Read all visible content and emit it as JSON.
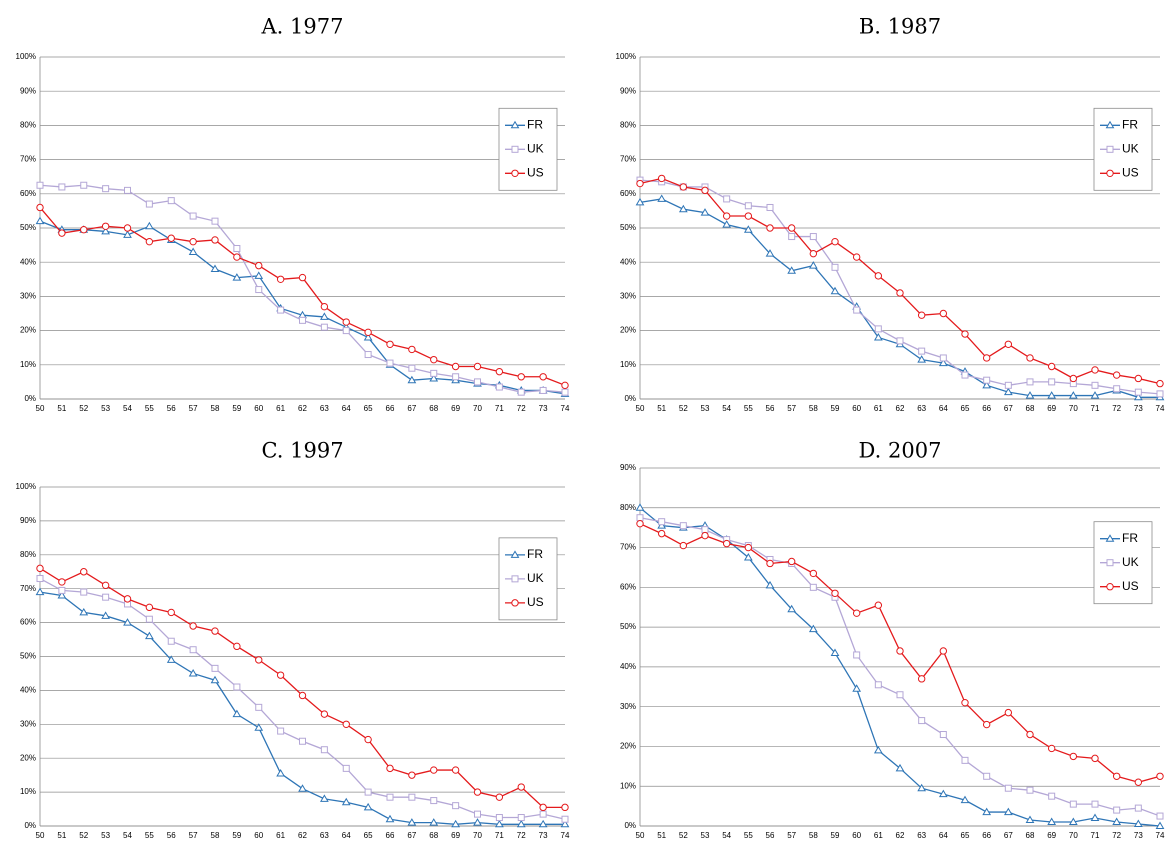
{
  "chart_data": [
    {
      "type": "line",
      "title": "A. 1977",
      "categories": [
        "50",
        "51",
        "52",
        "53",
        "54",
        "55",
        "56",
        "57",
        "58",
        "59",
        "60",
        "61",
        "62",
        "63",
        "64",
        "65",
        "66",
        "67",
        "68",
        "69",
        "70",
        "71",
        "72",
        "73",
        "74"
      ],
      "ylim": [
        0,
        100
      ],
      "yticks": [
        {
          "value": 0,
          "label": "0%"
        },
        {
          "value": 10,
          "label": "10%"
        },
        {
          "value": 20,
          "label": "20%"
        },
        {
          "value": 30,
          "label": "30%"
        },
        {
          "value": 40,
          "label": "40%"
        },
        {
          "value": 50,
          "label": "50%"
        },
        {
          "value": 60,
          "label": "60%"
        },
        {
          "value": 70,
          "label": "70%"
        },
        {
          "value": 80,
          "label": "80%"
        },
        {
          "value": 90,
          "label": "90%"
        },
        {
          "value": 100,
          "label": "100%"
        }
      ],
      "grid": true,
      "legend": "right",
      "series": [
        {
          "name": "FR",
          "color": "#2e75b6",
          "marker": "triangle",
          "values": [
            52,
            49.5,
            49.5,
            49,
            48,
            50.5,
            46.5,
            43,
            38,
            35.5,
            36,
            26.5,
            24.5,
            24,
            21,
            18,
            10,
            5.5,
            6,
            5.5,
            4.5,
            4,
            2.5,
            2.5,
            1.5
          ]
        },
        {
          "name": "UK",
          "color": "#b4a7d6",
          "marker": "square",
          "values": [
            62.5,
            62,
            62.5,
            61.5,
            61,
            57,
            58,
            53.5,
            52,
            44,
            32,
            26,
            23,
            21,
            20,
            13,
            10.5,
            9,
            7.5,
            6.5,
            5,
            3.5,
            2,
            2.5,
            2
          ]
        },
        {
          "name": "US",
          "color": "#e41a1c",
          "marker": "circle",
          "values": [
            56,
            48.5,
            49.5,
            50.5,
            50,
            46,
            47,
            46,
            46.5,
            41.5,
            39,
            35,
            35.5,
            27,
            22.5,
            19.5,
            16,
            14.5,
            11.5,
            9.5,
            9.5,
            8,
            6.5,
            6.5,
            4
          ]
        }
      ]
    },
    {
      "type": "line",
      "title": "B. 1987",
      "categories": [
        "50",
        "51",
        "52",
        "53",
        "54",
        "55",
        "56",
        "57",
        "58",
        "59",
        "60",
        "61",
        "62",
        "63",
        "64",
        "65",
        "66",
        "67",
        "68",
        "69",
        "70",
        "71",
        "72",
        "73",
        "74"
      ],
      "ylim": [
        0,
        100
      ],
      "yticks": [
        {
          "value": 0,
          "label": "0%"
        },
        {
          "value": 10,
          "label": "10%"
        },
        {
          "value": 20,
          "label": "20%"
        },
        {
          "value": 30,
          "label": "30%"
        },
        {
          "value": 40,
          "label": "40%"
        },
        {
          "value": 50,
          "label": "50%"
        },
        {
          "value": 60,
          "label": "60%"
        },
        {
          "value": 70,
          "label": "70%"
        },
        {
          "value": 80,
          "label": "80%"
        },
        {
          "value": 90,
          "label": "90%"
        },
        {
          "value": 100,
          "label": "100%"
        }
      ],
      "grid": true,
      "legend": "right",
      "series": [
        {
          "name": "FR",
          "color": "#2e75b6",
          "marker": "triangle",
          "values": [
            57.5,
            58.5,
            55.5,
            54.5,
            51,
            49.5,
            42.5,
            37.5,
            39,
            31.5,
            27,
            18,
            16,
            11.5,
            10.5,
            8,
            4,
            2,
            1,
            1,
            1,
            1,
            2.5,
            0.5,
            0.5
          ]
        },
        {
          "name": "UK",
          "color": "#b4a7d6",
          "marker": "square",
          "values": [
            64,
            63.5,
            62,
            62,
            58.5,
            56.5,
            56,
            47.5,
            47.5,
            38.5,
            26,
            20.5,
            17,
            14,
            12,
            7,
            5.5,
            4,
            5,
            5,
            4.5,
            4,
            3,
            2,
            1.5
          ]
        },
        {
          "name": "US",
          "color": "#e41a1c",
          "marker": "circle",
          "values": [
            63,
            64.5,
            62,
            61,
            53.5,
            53.5,
            50,
            50,
            42.5,
            46,
            41.5,
            36,
            31,
            24.5,
            25,
            19,
            12,
            16,
            12,
            9.5,
            6,
            8.5,
            7,
            6,
            4.5
          ]
        }
      ]
    },
    {
      "type": "line",
      "title": "C. 1997",
      "categories": [
        "50",
        "51",
        "52",
        "53",
        "54",
        "55",
        "56",
        "57",
        "58",
        "59",
        "60",
        "61",
        "62",
        "63",
        "64",
        "65",
        "66",
        "67",
        "68",
        "69",
        "70",
        "71",
        "72",
        "73",
        "74"
      ],
      "ylim": [
        0,
        100
      ],
      "yticks": [
        {
          "value": 0,
          "label": "0%"
        },
        {
          "value": 10,
          "label": "10%"
        },
        {
          "value": 20,
          "label": "20%"
        },
        {
          "value": 30,
          "label": "30%"
        },
        {
          "value": 40,
          "label": "40%"
        },
        {
          "value": 50,
          "label": "50%"
        },
        {
          "value": 60,
          "label": "60%"
        },
        {
          "value": 70,
          "label": "70%"
        },
        {
          "value": 80,
          "label": "80%"
        },
        {
          "value": 90,
          "label": "90%"
        },
        {
          "value": 100,
          "label": "100%"
        }
      ],
      "grid": true,
      "legend": "right",
      "series": [
        {
          "name": "FR",
          "color": "#2e75b6",
          "marker": "triangle",
          "values": [
            69,
            68,
            63,
            62,
            60,
            56,
            49,
            45,
            43,
            33,
            29,
            15.5,
            11,
            8,
            7,
            5.5,
            2,
            1,
            1,
            0.5,
            1,
            0.5,
            0.5,
            0.5,
            0.5
          ]
        },
        {
          "name": "UK",
          "color": "#b4a7d6",
          "marker": "square",
          "values": [
            73,
            69.5,
            69,
            67.5,
            65.5,
            61,
            54.5,
            52,
            46.5,
            41,
            35,
            28,
            25,
            22.5,
            17,
            10,
            8.5,
            8.5,
            7.5,
            6,
            3.5,
            2.5,
            2.5,
            3.5,
            2
          ]
        },
        {
          "name": "US",
          "color": "#e41a1c",
          "marker": "circle",
          "values": [
            76,
            72,
            75,
            71,
            67,
            64.5,
            63,
            59,
            57.5,
            53,
            49,
            44.5,
            38.5,
            33,
            30,
            25.5,
            17,
            15,
            16.5,
            16.5,
            10,
            8.5,
            11.5,
            5.5,
            5.5
          ]
        }
      ]
    },
    {
      "type": "line",
      "title": "D. 2007",
      "categories": [
        "50",
        "51",
        "52",
        "53",
        "54",
        "55",
        "56",
        "57",
        "58",
        "59",
        "60",
        "61",
        "62",
        "63",
        "64",
        "65",
        "66",
        "67",
        "68",
        "69",
        "70",
        "71",
        "72",
        "73",
        "74"
      ],
      "ylim": [
        0,
        90
      ],
      "yticks": [
        {
          "value": 0,
          "label": "0%"
        },
        {
          "value": 10,
          "label": "10%"
        },
        {
          "value": 20,
          "label": "20%"
        },
        {
          "value": 30,
          "label": "30%"
        },
        {
          "value": 40,
          "label": "40%"
        },
        {
          "value": 50,
          "label": "50%"
        },
        {
          "value": 60,
          "label": "60%"
        },
        {
          "value": 70,
          "label": "70%"
        },
        {
          "value": 80,
          "label": "80%"
        },
        {
          "value": 90,
          "label": "90%"
        }
      ],
      "grid": true,
      "legend": "right",
      "series": [
        {
          "name": "FR",
          "color": "#2e75b6",
          "marker": "triangle",
          "values": [
            80,
            75.5,
            75,
            75.5,
            72,
            67.5,
            60.5,
            54.5,
            49.5,
            43.5,
            34.5,
            19,
            14.5,
            9.5,
            8,
            6.5,
            3.5,
            3.5,
            1.5,
            1,
            1,
            2,
            1,
            0.5,
            0
          ]
        },
        {
          "name": "UK",
          "color": "#b4a7d6",
          "marker": "square",
          "values": [
            77.5,
            76.5,
            75.5,
            74.5,
            72,
            70.5,
            67,
            66,
            60,
            57.5,
            43,
            35.5,
            33,
            26.5,
            23,
            16.5,
            12.5,
            9.5,
            9,
            7.5,
            5.5,
            5.5,
            4,
            4.5,
            2.5
          ]
        },
        {
          "name": "US",
          "color": "#e41a1c",
          "marker": "circle",
          "values": [
            76,
            73.5,
            70.5,
            73,
            71,
            70,
            66,
            66.5,
            63.5,
            58.5,
            53.5,
            55.5,
            44,
            37,
            44,
            31,
            25.5,
            28.5,
            23,
            19.5,
            17.5,
            17,
            12.5,
            11,
            12.5
          ]
        }
      ]
    }
  ]
}
